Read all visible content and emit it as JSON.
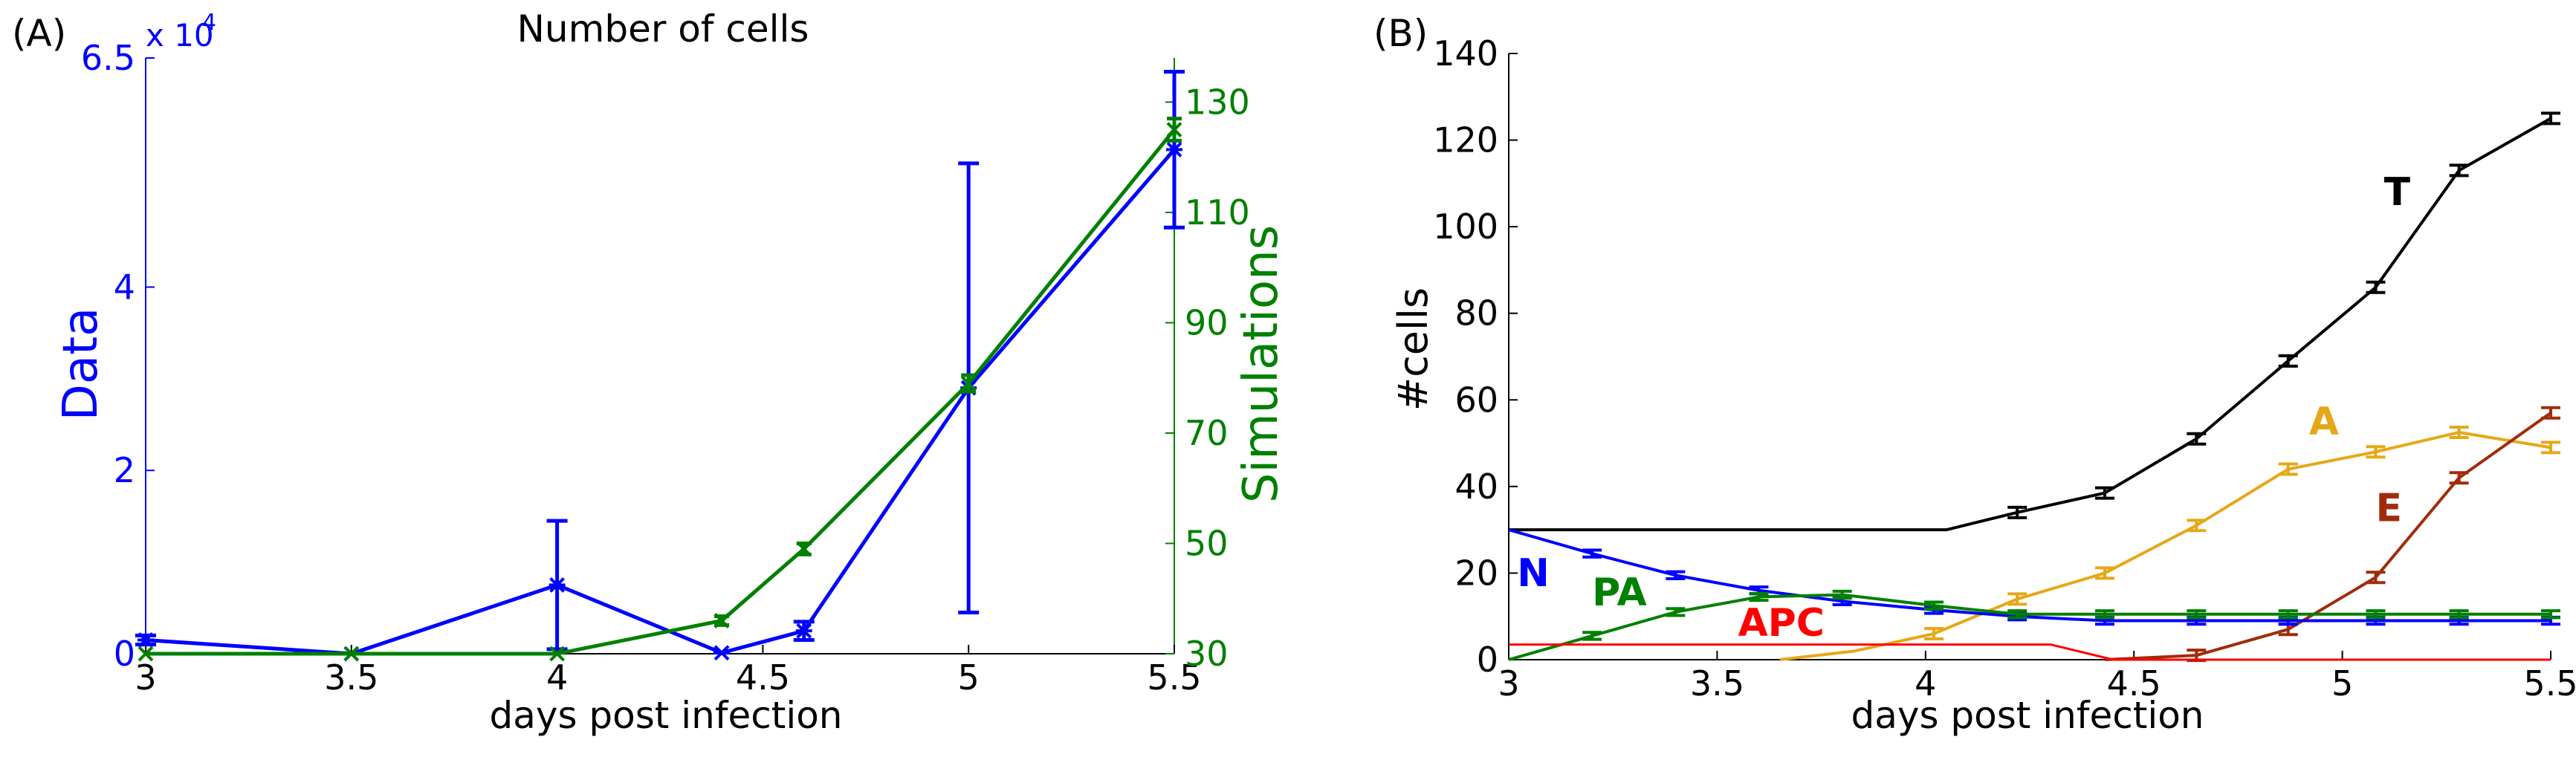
{
  "colors": {
    "data_blue": "#0000ff",
    "sim_green": "#008000",
    "black": "#000000",
    "yellow": "#e6a817",
    "brown": "#a02c0a",
    "red": "#ff0000"
  },
  "chart_data": [
    {
      "panel_label": "(A)",
      "type": "line",
      "title": "Number of cells",
      "xlabel": "days post infection",
      "ylabel_left": "Data",
      "ylabel_right": "Simulations",
      "left_multiplier": "x 10",
      "left_multiplier_exp": "4",
      "xlim": [
        3,
        5.5
      ],
      "ylim_left": [
        0,
        65000
      ],
      "ylim_right": [
        30,
        138
      ],
      "x_ticks": [
        3,
        3.5,
        4,
        4.5,
        5,
        5.5
      ],
      "x_tick_labels": [
        "3",
        "3.5",
        "4",
        "4.5",
        "5",
        "5.5"
      ],
      "y_left_ticks": [
        0,
        20000,
        40000,
        65000
      ],
      "y_left_tick_labels": [
        "0",
        "2",
        "4",
        "6.5"
      ],
      "y_right_ticks": [
        30,
        50,
        70,
        90,
        110,
        130
      ],
      "y_right_tick_labels": [
        "30",
        "50",
        "70",
        "90",
        "110",
        "130"
      ],
      "grid": false,
      "series": [
        {
          "axis": "left",
          "color": "#0000ff",
          "marker": "star",
          "x": [
            3,
            3.5,
            4,
            4.4,
            4.6,
            5,
            5.5
          ],
          "y": [
            1500,
            0,
            7500,
            100,
            2500,
            29000,
            55000
          ],
          "err": [
            500,
            0,
            7000,
            0,
            1000,
            24500,
            8500
          ]
        },
        {
          "axis": "right",
          "color": "#008000",
          "marker": "x",
          "x": [
            3,
            3.5,
            4,
            4.4,
            4.6,
            5,
            5.5
          ],
          "y": [
            30,
            30,
            30,
            36,
            49,
            79,
            125
          ],
          "err": [
            0,
            0,
            0,
            0.8,
            1,
            1.5,
            2
          ]
        }
      ]
    },
    {
      "panel_label": "(B)",
      "type": "line",
      "xlabel": "days post infection",
      "ylabel": "#cells",
      "xlim": [
        3,
        5.5
      ],
      "ylim": [
        0,
        140
      ],
      "x_ticks": [
        3,
        3.5,
        4,
        4.5,
        5,
        5.5
      ],
      "x_tick_labels": [
        "3",
        "3.5",
        "4",
        "4.5",
        "5",
        "5.5"
      ],
      "y_ticks": [
        0,
        20,
        40,
        60,
        80,
        100,
        120,
        140
      ],
      "y_tick_labels": [
        "0",
        "20",
        "40",
        "60",
        "80",
        "100",
        "120",
        "140"
      ],
      "grid": false,
      "series": [
        {
          "name": "T",
          "color": "#000000",
          "x": [
            3.0,
            3.5,
            4.05,
            4.22,
            4.43,
            4.65,
            4.87,
            5.08,
            5.28,
            5.5
          ],
          "y": [
            30,
            30,
            30,
            34,
            38.5,
            51,
            69,
            86,
            113,
            125
          ],
          "err_from": 3,
          "err": 1.2,
          "label_x": 5.1,
          "label_y": 105
        },
        {
          "name": "A",
          "color": "#e6a817",
          "x": [
            3.65,
            3.83,
            4.02,
            4.22,
            4.43,
            4.65,
            4.87,
            5.08,
            5.28,
            5.5
          ],
          "y": [
            0,
            2,
            6,
            14,
            20,
            31,
            44,
            48,
            52.5,
            49
          ],
          "err_from": 2,
          "err": 1.2,
          "label_x": 4.92,
          "label_y": 52
        },
        {
          "name": "E",
          "color": "#a02c0a",
          "x": [
            4.43,
            4.65,
            4.87,
            5.08,
            5.28,
            5.5
          ],
          "y": [
            0,
            1,
            7,
            19,
            42,
            57
          ],
          "err_from": 1,
          "err": 1.2,
          "label_x": 5.08,
          "label_y": 32
        },
        {
          "name": "N",
          "color": "#0000ff",
          "x": [
            3.0,
            3.2,
            3.4,
            3.6,
            3.8,
            4.02,
            4.22,
            4.43,
            4.65,
            4.87,
            5.08,
            5.28,
            5.5
          ],
          "y": [
            30,
            24.5,
            19.5,
            16,
            13.5,
            11.5,
            10,
            9,
            9,
            9,
            9,
            9,
            9
          ],
          "err_from": 1,
          "err": 0.8,
          "label_x": 3.02,
          "label_y": 17
        },
        {
          "name": "PA",
          "color": "#008000",
          "x": [
            3.0,
            3.2,
            3.4,
            3.6,
            3.8,
            4.02,
            4.22,
            4.43,
            4.65,
            4.87,
            5.08,
            5.28,
            5.5
          ],
          "y": [
            0,
            5.5,
            11,
            14.5,
            15,
            12.5,
            10.5,
            10.5,
            10.5,
            10.5,
            10.5,
            10.5,
            10.5
          ],
          "err_from": 1,
          "err": 0.8,
          "label_x": 3.2,
          "label_y": 12.5
        },
        {
          "name": "APC",
          "color": "#ff0000",
          "x": [
            3.0,
            4.3,
            4.45,
            5.5
          ],
          "y": [
            3.5,
            3.5,
            0,
            0
          ],
          "err_from": 99,
          "err": 0,
          "label_x": 3.55,
          "label_y": 5.5
        }
      ]
    }
  ]
}
